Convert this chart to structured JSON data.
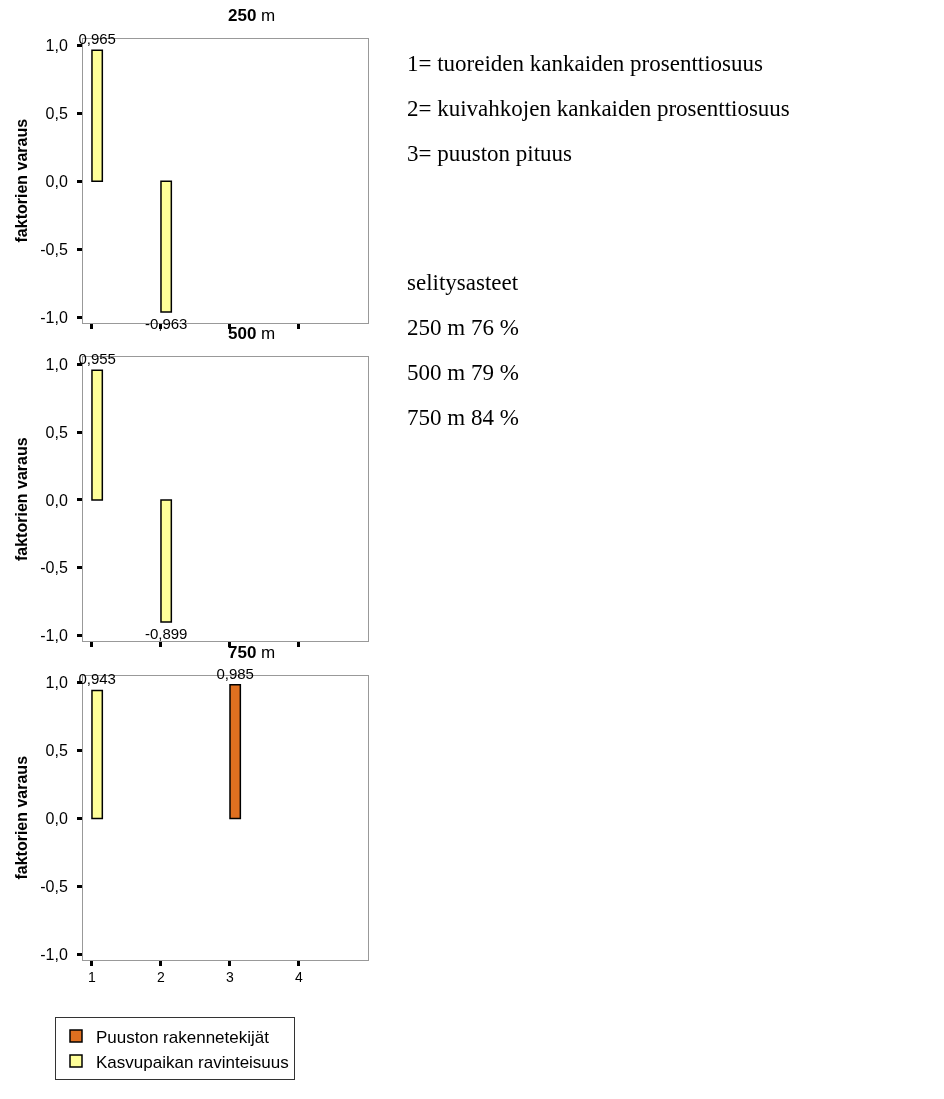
{
  "chart_data": [
    {
      "type": "bar",
      "title": "250 m",
      "ylabel": "faktorien varaus",
      "x": [
        1,
        2
      ],
      "series": [
        {
          "color": "#ffff99",
          "values": [
            0.965,
            -0.963
          ],
          "value_labels": [
            "0,965",
            "-0,963"
          ]
        }
      ],
      "xlim": [
        0.87,
        5.0
      ],
      "ylim": [
        -1.04,
        1.05
      ],
      "xticks": [
        {
          "value": 1,
          "label": null
        },
        {
          "value": 2,
          "label": null
        },
        {
          "value": 3,
          "label": null
        },
        {
          "value": 4,
          "label": null
        }
      ],
      "yticks": [
        {
          "value": -1,
          "label": "-1,0"
        },
        {
          "value": -0.5,
          "label": "-0,5"
        },
        {
          "value": 0,
          "label": "0,0"
        },
        {
          "value": 0.5,
          "label": "0,5"
        },
        {
          "value": 1,
          "label": "1,0"
        }
      ],
      "tick_labels": "y",
      "legend": false,
      "annotations": [
        "1= tuoreiden kankaiden prosenttiosuus",
        "2= kuivahkojen kankaiden prosenttiosuus",
        "3= puuston pituus",
        "selitysasteet",
        "250 m 76 %",
        "500 m 79 %",
        "750 m 84 %"
      ]
    },
    {
      "type": "bar",
      "title": "500 m",
      "ylabel": "faktorien varaus",
      "x": [
        1,
        2
      ],
      "series": [
        {
          "color": "#ffff99",
          "values": [
            0.955,
            -0.899
          ],
          "value_labels": [
            "0,955",
            "-0,899"
          ]
        }
      ],
      "xlim": [
        0.87,
        5.0
      ],
      "ylim": [
        -1.04,
        1.05
      ],
      "xticks": [
        {
          "value": 1,
          "label": null
        },
        {
          "value": 2,
          "label": null
        },
        {
          "value": 3,
          "label": null
        },
        {
          "value": 4,
          "label": null
        }
      ],
      "yticks": [
        {
          "value": -1,
          "label": "-1,0"
        },
        {
          "value": -0.5,
          "label": "-0,5"
        },
        {
          "value": 0,
          "label": "0,0"
        },
        {
          "value": 0.5,
          "label": "0,5"
        },
        {
          "value": 1,
          "label": "1,0"
        }
      ],
      "tick_labels": "y",
      "legend": false
    },
    {
      "type": "bar",
      "title": "750 m",
      "ylabel": "faktorien varaus",
      "x": [
        1,
        2,
        3
      ],
      "series": [
        {
          "name": "Puuston rakennetekijät",
          "color": "#e07020",
          "values": [
            null,
            null,
            0.985
          ],
          "value_labels": [
            null,
            null,
            "0,985"
          ]
        },
        {
          "name": "Kasvupaikan ravinteisuus",
          "color": "#ffff99",
          "values": [
            0.943,
            null,
            null
          ],
          "value_labels": [
            "0,943",
            null,
            null
          ]
        }
      ],
      "xlim": [
        0.87,
        5.0
      ],
      "ylim": [
        -1.04,
        1.05
      ],
      "xticks": [
        1,
        2,
        3,
        4
      ],
      "yticks": [
        {
          "value": -1,
          "label": "-1,0"
        },
        {
          "value": -0.5,
          "label": "-0,5"
        },
        {
          "value": 0,
          "label": "0,0"
        },
        {
          "value": 0.5,
          "label": "0,5"
        },
        {
          "value": 1,
          "label": "1,0"
        }
      ],
      "legend": "bottom"
    }
  ]
}
